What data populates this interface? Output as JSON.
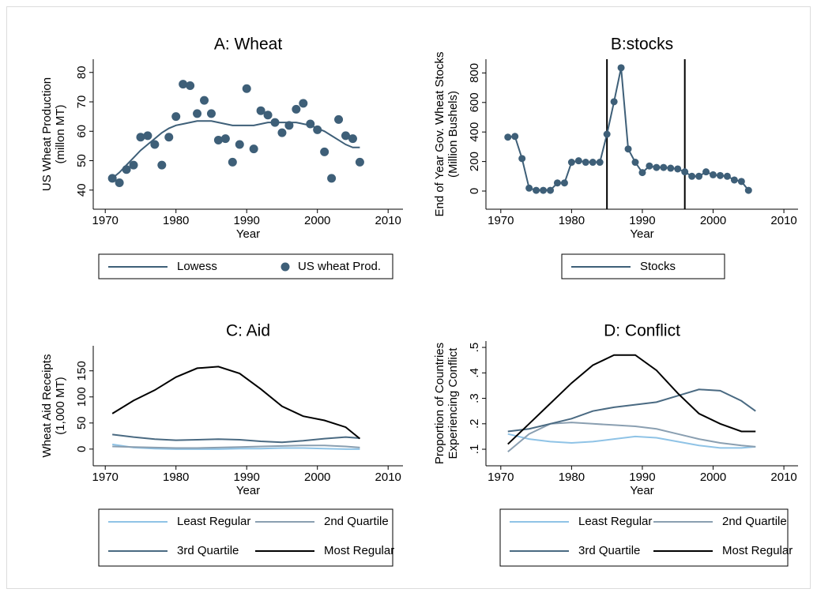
{
  "chart_data": [
    {
      "type": "scatter",
      "title": "A: Wheat",
      "x_label": "Year",
      "y_label": [
        "US Wheat Production",
        "(millon MT)"
      ],
      "x": [
        1971,
        1972,
        1973,
        1974,
        1975,
        1976,
        1977,
        1978,
        1979,
        1980,
        1981,
        1982,
        1983,
        1984,
        1985,
        1986,
        1987,
        1988,
        1989,
        1990,
        1991,
        1992,
        1993,
        1994,
        1995,
        1996,
        1997,
        1998,
        1999,
        2000,
        2001,
        2002,
        2003,
        2004,
        2005,
        2006
      ],
      "xlim": [
        1968.3,
        2012.1
      ],
      "xticks": [
        1970,
        1980,
        1990,
        2000,
        2010
      ],
      "ylim": [
        33.5,
        84.5
      ],
      "yticks": [
        40,
        50,
        60,
        70,
        80
      ],
      "series": [
        {
          "name": "Lowess",
          "type": "line",
          "color": "#3e5f78",
          "values": [
            44,
            46,
            48.5,
            51,
            53.5,
            55.5,
            57.5,
            59.5,
            61,
            62,
            62.5,
            63,
            63.5,
            63.5,
            63.5,
            63,
            62.5,
            62,
            62,
            62,
            62,
            62.5,
            63,
            63,
            63,
            63,
            63,
            62.5,
            62,
            61,
            60,
            58.5,
            57,
            55.5,
            54.5,
            54.5
          ]
        },
        {
          "name": "US wheat Prod.",
          "type": "scatter",
          "color": "#3e5f78",
          "values": [
            44,
            42.5,
            47,
            48.5,
            58,
            58.5,
            55.5,
            48.5,
            58,
            65,
            76,
            75.5,
            66,
            70.5,
            66,
            57,
            57.5,
            49.5,
            55.5,
            74.5,
            54,
            67,
            65.5,
            63,
            59.5,
            62,
            67.5,
            69.5,
            62.5,
            60.5,
            53,
            44,
            64,
            58.5,
            57.5,
            49.5
          ]
        }
      ]
    },
    {
      "type": "line",
      "title": "B:stocks",
      "x_label": "Year",
      "y_label": [
        "End of Year Gov. Wheat Stocks",
        "(Million Bushels)"
      ],
      "x": [
        1971,
        1972,
        1973,
        1974,
        1975,
        1976,
        1977,
        1978,
        1979,
        1980,
        1981,
        1982,
        1983,
        1984,
        1985,
        1986,
        1987,
        1988,
        1989,
        1990,
        1991,
        1992,
        1993,
        1994,
        1995,
        1996,
        1997,
        1998,
        1999,
        2000,
        2001,
        2002,
        2003,
        2004,
        2005
      ],
      "xlim": [
        1967.9,
        2012.0
      ],
      "xticks": [
        1970,
        1980,
        1990,
        2000,
        2010
      ],
      "ylim": [
        -123,
        893
      ],
      "yticks": [
        0,
        200,
        400,
        600,
        800
      ],
      "vlines": [
        1985,
        1996
      ],
      "series": [
        {
          "name": "Stocks",
          "type": "line",
          "marker": true,
          "color": "#3e5f78",
          "values": [
            365,
            370,
            220,
            20,
            5,
            5,
            5,
            55,
            55,
            195,
            205,
            195,
            195,
            195,
            385,
            605,
            835,
            285,
            195,
            125,
            170,
            160,
            160,
            155,
            150,
            130,
            100,
            100,
            130,
            110,
            105,
            100,
            75,
            65,
            5
          ]
        }
      ]
    },
    {
      "type": "line",
      "title": "C: Aid",
      "x_label": "Year",
      "y_label": [
        "Wheat Aid Receipts",
        "(1,000 MT)"
      ],
      "x": [
        1971,
        1974,
        1977,
        1980,
        1983,
        1986,
        1989,
        1992,
        1995,
        1998,
        2001,
        2004,
        2006
      ],
      "xlim": [
        1968.3,
        2012.1
      ],
      "xticks": [
        1970,
        1980,
        1990,
        2000,
        2010
      ],
      "ylim": [
        -32,
        198
      ],
      "yticks": [
        0,
        50,
        100,
        150
      ],
      "series": [
        {
          "name": "Least Regular",
          "color": "#8fc3e6",
          "values": [
            9,
            3,
            1,
            0,
            0,
            0,
            1,
            1,
            2,
            2,
            1,
            0,
            0
          ]
        },
        {
          "name": "2nd Quartile",
          "color": "#8a9fb1",
          "values": [
            5,
            4,
            3,
            2,
            2,
            3,
            4,
            5,
            6,
            7,
            7,
            5,
            3
          ]
        },
        {
          "name": "3rd Quartile",
          "color": "#4a6a82",
          "values": [
            28,
            23,
            19,
            17,
            18,
            19,
            18,
            15,
            13,
            16,
            20,
            23,
            21
          ]
        },
        {
          "name": "Most Regular",
          "color": "#000000",
          "values": [
            68,
            93,
            113,
            138,
            155,
            158,
            145,
            115,
            82,
            63,
            55,
            42,
            20
          ]
        }
      ]
    },
    {
      "type": "line",
      "title": "D: Conflict",
      "x_label": "Year",
      "y_label": [
        "Proportion of Countries",
        "Experiencing Conflict"
      ],
      "x": [
        1971,
        1974,
        1977,
        1980,
        1983,
        1986,
        1989,
        1992,
        1995,
        1998,
        2001,
        2004,
        2006
      ],
      "xlim": [
        1967.9,
        2012.0
      ],
      "xticks": [
        1970,
        1980,
        1990,
        2000,
        2010
      ],
      "ylim": [
        0.035,
        0.525
      ],
      "yticks": [
        {
          "value": 0.1,
          "label": ".1"
        },
        {
          "value": 0.2,
          "label": ".2"
        },
        {
          "value": 0.3,
          "label": ".3"
        },
        {
          "value": 0.4,
          "label": ".4"
        },
        {
          "value": 0.5,
          "label": ".5"
        }
      ],
      "series": [
        {
          "name": "Least Regular",
          "color": "#8fc3e6",
          "values": [
            0.16,
            0.14,
            0.13,
            0.125,
            0.13,
            0.14,
            0.15,
            0.145,
            0.13,
            0.115,
            0.105,
            0.105,
            0.11
          ]
        },
        {
          "name": "2nd Quartile",
          "color": "#8a9fb1",
          "values": [
            0.09,
            0.16,
            0.2,
            0.205,
            0.2,
            0.195,
            0.19,
            0.18,
            0.16,
            0.14,
            0.125,
            0.115,
            0.11
          ]
        },
        {
          "name": "3rd Quartile",
          "color": "#4a6a82",
          "values": [
            0.17,
            0.18,
            0.2,
            0.22,
            0.25,
            0.265,
            0.275,
            0.285,
            0.31,
            0.335,
            0.33,
            0.29,
            0.25
          ]
        },
        {
          "name": "Most Regular",
          "color": "#000000",
          "values": [
            0.12,
            0.2,
            0.28,
            0.36,
            0.43,
            0.47,
            0.47,
            0.41,
            0.32,
            0.24,
            0.2,
            0.17,
            0.17
          ]
        }
      ]
    }
  ]
}
